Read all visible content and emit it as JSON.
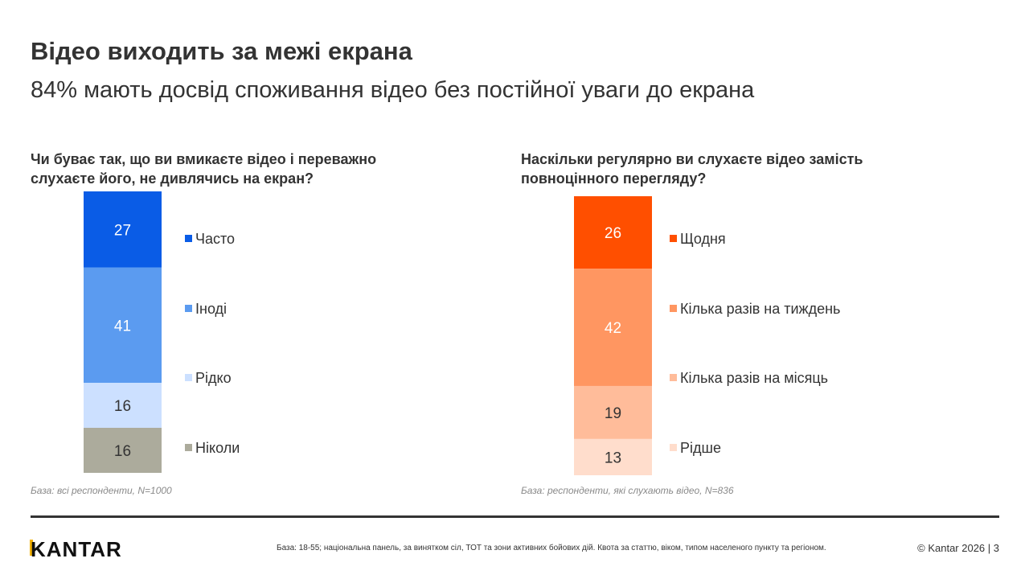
{
  "header": {
    "title": "Відео виходить за межі екрана",
    "subtitle": "84% мають досвід споживання відео без постійної уваги до екрана"
  },
  "chart_data": [
    {
      "type": "bar",
      "stacked": true,
      "title": "Чи буває так, що ви вмикаєте відео і переважно слухаєте його, не дивлячись на екран?",
      "series": [
        {
          "name": "Часто",
          "value": 27,
          "color": "#0a5ce6",
          "label_color": "#ffffff"
        },
        {
          "name": "Іноді",
          "value": 41,
          "color": "#5b9bf0",
          "label_color": "#ffffff"
        },
        {
          "name": "Рідко",
          "value": 16,
          "color": "#cce0ff",
          "label_color": "#333333"
        },
        {
          "name": "Ніколи",
          "value": 16,
          "color": "#acab9c",
          "label_color": "#333333"
        }
      ],
      "base_note": "База: всі респонденти, N=1000"
    },
    {
      "type": "bar",
      "stacked": true,
      "title": "Наскільки регулярно ви слухаєте відео замість повноцінного перегляду?",
      "series": [
        {
          "name": "Щодня",
          "value": 26,
          "color": "#ff4f00",
          "label_color": "#ffffff"
        },
        {
          "name": "Кілька разів на тиждень",
          "value": 42,
          "color": "#ff9661",
          "label_color": "#ffffff"
        },
        {
          "name": "Кілька разів на місяць",
          "value": 19,
          "color": "#ffbc9a",
          "label_color": "#333333"
        },
        {
          "name": "Рідше",
          "value": 13,
          "color": "#ffddcc",
          "label_color": "#333333"
        }
      ],
      "base_note": "База: респонденти, які слухають відео, N=836"
    }
  ],
  "footer": {
    "logo": "KANTAR",
    "note": "База: 18-55; національна панель, за винятком сіл, ТОТ та зони активних бойових дій. Квота за статтю, віком, типом населеного пункту та регіоном.",
    "copyright": "© Kantar 2026 | 3"
  }
}
